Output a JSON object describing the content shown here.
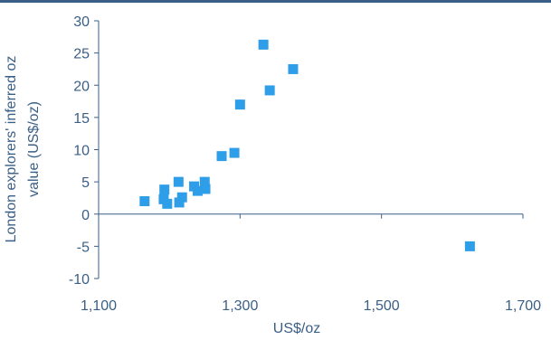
{
  "chart_data": {
    "type": "scatter",
    "title": "",
    "xlabel": "US$/oz",
    "ylabel_lines": [
      "London explorers' inferred oz",
      "value (US$/oz)"
    ],
    "xlim": [
      1100,
      1700
    ],
    "ylim": [
      -10,
      30
    ],
    "x_ticks": [
      1100,
      1300,
      1500,
      1700
    ],
    "x_tick_labels": [
      "1,100",
      "1,300",
      "1,500",
      "1,700"
    ],
    "y_ticks": [
      -10,
      -5,
      0,
      5,
      10,
      15,
      20,
      25,
      30
    ],
    "y_tick_labels": [
      "-10",
      "-5",
      "0",
      "5",
      "10",
      "15",
      "20",
      "25",
      "30"
    ],
    "grid": false,
    "legend": "none",
    "colors": {
      "marker": "#2f9ee8",
      "axis": "#3a5f86",
      "text": "#3a5f86",
      "top_rule": "#3a5f86"
    },
    "points": [
      {
        "x": 1165,
        "y": 2.0
      },
      {
        "x": 1192,
        "y": 2.3
      },
      {
        "x": 1193,
        "y": 3.8
      },
      {
        "x": 1197,
        "y": 1.6
      },
      {
        "x": 1213,
        "y": 5.0
      },
      {
        "x": 1214,
        "y": 1.8
      },
      {
        "x": 1218,
        "y": 2.6
      },
      {
        "x": 1235,
        "y": 4.3
      },
      {
        "x": 1240,
        "y": 3.6
      },
      {
        "x": 1250,
        "y": 5.0
      },
      {
        "x": 1251,
        "y": 3.9
      },
      {
        "x": 1274,
        "y": 9.0
      },
      {
        "x": 1292,
        "y": 9.5
      },
      {
        "x": 1300,
        "y": 17.0
      },
      {
        "x": 1333,
        "y": 26.3
      },
      {
        "x": 1342,
        "y": 19.2
      },
      {
        "x": 1375,
        "y": 22.5
      },
      {
        "x": 1625,
        "y": -5.0
      }
    ]
  }
}
